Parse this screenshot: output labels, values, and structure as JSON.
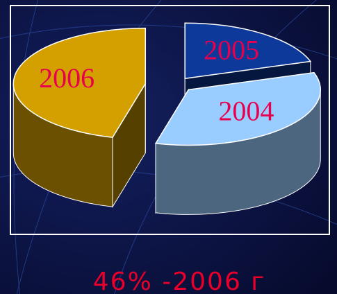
{
  "chart_data": {
    "type": "pie",
    "categories": [
      "2005",
      "2004",
      "2006"
    ],
    "values": [
      20,
      34,
      46
    ],
    "colors": [
      "#0d3a9a",
      "#99ccff",
      "#d4a000"
    ],
    "caption": "46% -2006 г"
  }
}
